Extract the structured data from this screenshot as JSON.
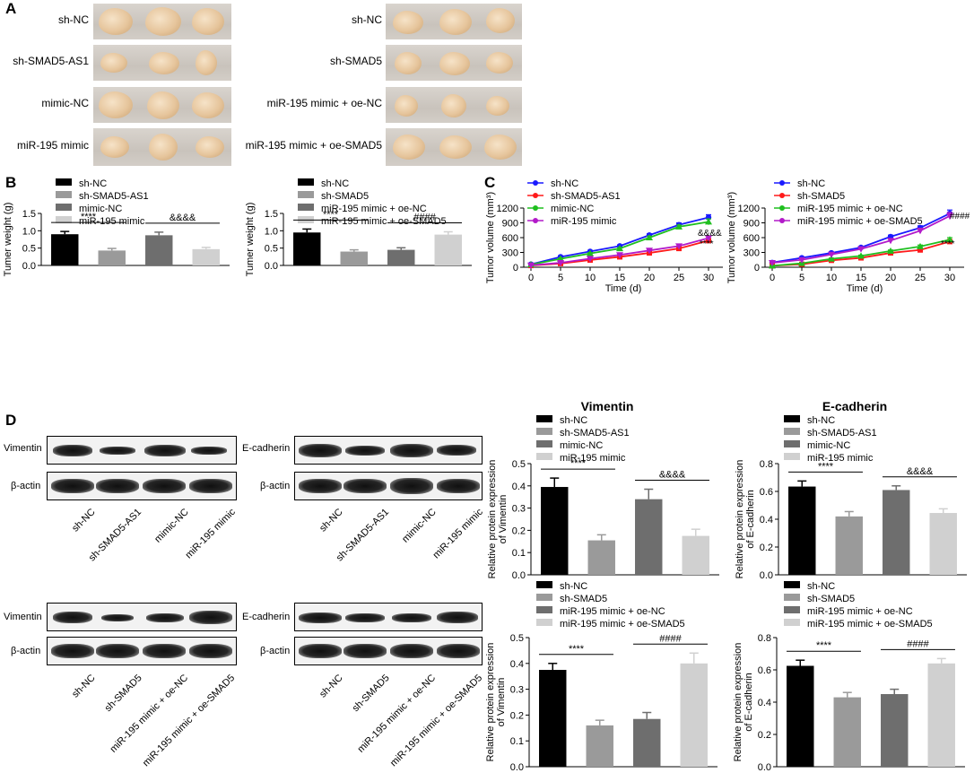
{
  "panel_labels": {
    "A": "A",
    "B": "B",
    "C": "C",
    "D": "D"
  },
  "panelA": {
    "left_labels": [
      "sh-NC",
      "sh-SMAD5-AS1",
      "mimic-NC",
      "miR-195 mimic"
    ],
    "right_labels": [
      "sh-NC",
      "sh-SMAD5",
      "miR-195 mimic + oe-NC",
      "miR-195 mimic + oe-SMAD5"
    ]
  },
  "panelD_blots": {
    "row_labels": {
      "vimentin": "Vimentin",
      "ecadherin": "E-cadherin",
      "actin": "β-actin"
    },
    "top_lanes": [
      "sh-NC",
      "sh-SMAD5-AS1",
      "mimic-NC",
      "miR-195 mimic"
    ],
    "bottom_lanes": [
      "sh-NC",
      "sh-SMAD5",
      "miR-195 mimic + oe-NC",
      "miR-195 mimic + oe-SMAD5"
    ]
  },
  "chart_data": [
    {
      "id": "B1",
      "type": "bar",
      "title": "",
      "ylabel": "Tumer weight (g)",
      "ylim": [
        0,
        1.5
      ],
      "yticks": [
        "0.0",
        "0.5",
        "1.0",
        "1.5"
      ],
      "categories": [
        "sh-NC",
        "sh-SMAD5-AS1",
        "mimic-NC",
        "miR-195 mimic"
      ],
      "values": [
        0.9,
        0.43,
        0.87,
        0.47
      ],
      "errors": [
        0.08,
        0.06,
        0.09,
        0.05
      ],
      "colors": [
        "#000000",
        "#9a9a9a",
        "#6e6e6e",
        "#d0d0d0"
      ],
      "sig": [
        {
          "from": 0,
          "to": 1,
          "label": "****"
        },
        {
          "from": 2,
          "to": 3,
          "label": "&&&&"
        }
      ]
    },
    {
      "id": "B2",
      "type": "bar",
      "title": "",
      "ylabel": "Tumer weight (g)",
      "ylim": [
        0,
        1.5
      ],
      "yticks": [
        "0.0",
        "0.5",
        "1.0",
        "1.5"
      ],
      "categories": [
        "sh-NC",
        "sh-SMAD5",
        "miR-195 mimic + oe-NC",
        "miR-195 mimic + oe-SMAD5"
      ],
      "values": [
        0.95,
        0.4,
        0.45,
        0.89
      ],
      "errors": [
        0.1,
        0.05,
        0.06,
        0.08
      ],
      "colors": [
        "#000000",
        "#9a9a9a",
        "#6e6e6e",
        "#d0d0d0"
      ],
      "sig": [
        {
          "from": 0,
          "to": 1,
          "label": "****"
        },
        {
          "from": 2,
          "to": 3,
          "label": "####"
        }
      ]
    },
    {
      "id": "C1",
      "type": "line",
      "title": "",
      "xlabel": "Time (d)",
      "ylabel": "Tumor volume (mm³)",
      "ylim": [
        0,
        1200
      ],
      "yticks": [
        "0",
        "300",
        "600",
        "900",
        "1200"
      ],
      "x": [
        0,
        5,
        10,
        15,
        20,
        25,
        30
      ],
      "xticks": [
        "0",
        "5",
        "10",
        "15",
        "20",
        "25",
        "30"
      ],
      "series": [
        {
          "name": "sh-NC",
          "color": "#1a1aff",
          "marker": "circle",
          "values": [
            60,
            210,
            320,
            430,
            650,
            860,
            1010
          ],
          "errors": [
            10,
            15,
            15,
            20,
            30,
            40,
            55
          ]
        },
        {
          "name": "sh-SMAD5-AS1",
          "color": "#ff1a1a",
          "marker": "square",
          "values": [
            35,
            75,
            145,
            210,
            290,
            380,
            540
          ],
          "errors": [
            8,
            10,
            12,
            15,
            20,
            25,
            30
          ]
        },
        {
          "name": "mimic-NC",
          "color": "#1fbf1f",
          "marker": "triangle",
          "values": [
            55,
            170,
            280,
            380,
            600,
            820,
            920
          ],
          "errors": [
            10,
            15,
            15,
            20,
            30,
            35,
            60
          ]
        },
        {
          "name": "miR-195 mimic",
          "color": "#b21ac9",
          "marker": "tridown",
          "values": [
            40,
            90,
            175,
            250,
            340,
            430,
            590
          ],
          "errors": [
            8,
            10,
            12,
            15,
            20,
            30,
            35
          ]
        }
      ],
      "annotations": [
        "&&&&",
        "****"
      ]
    },
    {
      "id": "C2",
      "type": "line",
      "title": "",
      "xlabel": "Time (d)",
      "ylabel": "Tumor volume (mm³)",
      "ylim": [
        0,
        1200
      ],
      "yticks": [
        "0",
        "300",
        "600",
        "900",
        "1200"
      ],
      "x": [
        0,
        5,
        10,
        15,
        20,
        25,
        30
      ],
      "xticks": [
        "0",
        "5",
        "10",
        "15",
        "20",
        "25",
        "30"
      ],
      "series": [
        {
          "name": "sh-NC",
          "color": "#1a1aff",
          "marker": "circle",
          "values": [
            95,
            190,
            290,
            400,
            620,
            800,
            1090
          ],
          "errors": [
            10,
            15,
            20,
            20,
            30,
            40,
            70
          ]
        },
        {
          "name": "sh-SMAD5",
          "color": "#ff1a1a",
          "marker": "square",
          "values": [
            30,
            60,
            140,
            190,
            290,
            350,
            520
          ],
          "errors": [
            8,
            10,
            12,
            15,
            20,
            25,
            40
          ]
        },
        {
          "name": "miR-195 mimic + oe-NC",
          "color": "#1fbf1f",
          "marker": "triangle",
          "values": [
            30,
            80,
            170,
            230,
            330,
            420,
            560
          ],
          "errors": [
            8,
            10,
            15,
            15,
            20,
            30,
            40
          ]
        },
        {
          "name": "miR-195 mimic + oe-SMAD5",
          "color": "#b21ac9",
          "marker": "tridown",
          "values": [
            90,
            150,
            260,
            370,
            540,
            740,
            1040
          ],
          "errors": [
            10,
            15,
            20,
            25,
            40,
            50,
            70
          ]
        }
      ],
      "annotations": [
        "####",
        "****"
      ]
    },
    {
      "id": "D1",
      "type": "bar",
      "title": "Vimentin",
      "ylabel": "Relative protein expression of Vimentin",
      "ylim": [
        0,
        0.5
      ],
      "yticks": [
        "0.0",
        "0.1",
        "0.2",
        "0.3",
        "0.4",
        "0.5"
      ],
      "categories": [
        "sh-NC",
        "sh-SMAD5-AS1",
        "mimic-NC",
        "miR-195 mimic"
      ],
      "values": [
        0.395,
        0.155,
        0.34,
        0.175
      ],
      "errors": [
        0.04,
        0.025,
        0.045,
        0.03
      ],
      "colors": [
        "#000000",
        "#9a9a9a",
        "#6e6e6e",
        "#d0d0d0"
      ],
      "sig": [
        {
          "from": 0,
          "to": 1,
          "label": "****"
        },
        {
          "from": 2,
          "to": 3,
          "label": "&&&&"
        }
      ]
    },
    {
      "id": "D2",
      "type": "bar",
      "title": "E-cadherin",
      "ylabel": "Relative protein expression of E-cadherin",
      "ylim": [
        0,
        0.8
      ],
      "yticks": [
        "0.0",
        "0.2",
        "0.4",
        "0.6",
        "0.8"
      ],
      "categories": [
        "sh-NC",
        "sh-SMAD5-AS1",
        "mimic-NC",
        "miR-195 mimic"
      ],
      "values": [
        0.635,
        0.42,
        0.61,
        0.445
      ],
      "errors": [
        0.04,
        0.035,
        0.03,
        0.03
      ],
      "colors": [
        "#000000",
        "#9a9a9a",
        "#6e6e6e",
        "#d0d0d0"
      ],
      "sig": [
        {
          "from": 0,
          "to": 1,
          "label": "****"
        },
        {
          "from": 2,
          "to": 3,
          "label": "&&&&"
        }
      ]
    },
    {
      "id": "D3",
      "type": "bar",
      "title": "",
      "ylabel": "Relative protein expression of Vimentin",
      "ylim": [
        0,
        0.5
      ],
      "yticks": [
        "0.0",
        "0.1",
        "0.2",
        "0.3",
        "0.4",
        "0.5"
      ],
      "categories": [
        "sh-NC",
        "sh-SMAD5",
        "miR-195 mimic + oe-NC",
        "miR-195 mimic + oe-SMAD5"
      ],
      "values": [
        0.375,
        0.16,
        0.185,
        0.4
      ],
      "errors": [
        0.025,
        0.02,
        0.025,
        0.04
      ],
      "colors": [
        "#000000",
        "#9a9a9a",
        "#6e6e6e",
        "#d0d0d0"
      ],
      "sig": [
        {
          "from": 0,
          "to": 1,
          "label": "****"
        },
        {
          "from": 2,
          "to": 3,
          "label": "####"
        }
      ]
    },
    {
      "id": "D4",
      "type": "bar",
      "title": "",
      "ylabel": "Relative protein expression of E-cadherin",
      "ylim": [
        0,
        0.8
      ],
      "yticks": [
        "0.0",
        "0.2",
        "0.4",
        "0.6",
        "0.8"
      ],
      "categories": [
        "sh-NC",
        "sh-SMAD5",
        "miR-195 mimic + oe-NC",
        "miR-195 mimic + oe-SMAD5"
      ],
      "values": [
        0.625,
        0.43,
        0.45,
        0.64
      ],
      "errors": [
        0.035,
        0.03,
        0.03,
        0.03
      ],
      "colors": [
        "#000000",
        "#9a9a9a",
        "#6e6e6e",
        "#d0d0d0"
      ],
      "sig": [
        {
          "from": 0,
          "to": 1,
          "label": "****"
        },
        {
          "from": 2,
          "to": 3,
          "label": "####"
        }
      ]
    }
  ]
}
